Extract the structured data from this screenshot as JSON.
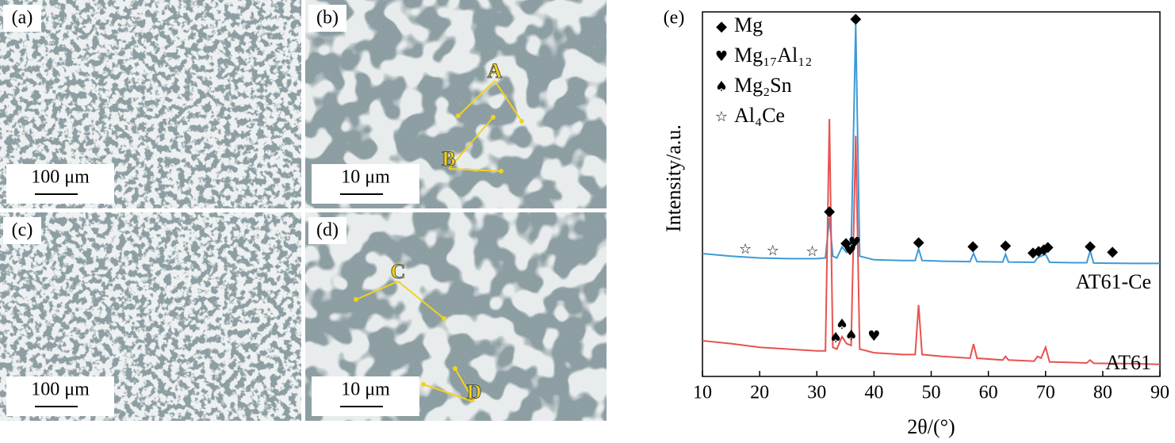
{
  "panels": [
    {
      "label": "(a)",
      "scale_bar": "100 μm",
      "annotations": []
    },
    {
      "label": "(b)",
      "scale_bar": "10 μm",
      "annotations": [
        "A",
        "B"
      ]
    },
    {
      "label": "(c)",
      "scale_bar": "100 μm",
      "annotations": []
    },
    {
      "label": "(d)",
      "scale_bar": "10 μm",
      "annotations": [
        "C",
        "D"
      ]
    }
  ],
  "chart_data": {
    "type": "line",
    "panel_label": "(e)",
    "xlabel": "2θ/(°)",
    "ylabel": "Intensity/a.u.",
    "x": [
      10,
      15,
      20,
      25,
      30,
      31.5,
      32.2,
      32.8,
      33.5,
      34.4,
      35.2,
      36,
      36.8,
      37.5,
      40,
      45,
      47.2,
      47.8,
      48.4,
      52,
      56.8,
      57.4,
      58,
      62.5,
      63,
      63.5,
      68,
      68.6,
      69.2,
      70,
      70.7,
      75,
      77.2,
      77.8,
      78.4,
      85,
      90
    ],
    "series": [
      {
        "name": "AT61-Ce",
        "color": "#3d9ad6",
        "values": [
          33.7,
          33,
          32.5,
          32.3,
          32.3,
          32.5,
          43.5,
          33,
          32.5,
          35.5,
          34,
          34.5,
          96.7,
          33,
          32,
          31.8,
          31.8,
          35,
          31.8,
          31.6,
          31.5,
          33.8,
          31.5,
          31.4,
          33.5,
          31.4,
          31.3,
          32.5,
          33,
          33.5,
          31.3,
          31.2,
          31.2,
          34.5,
          31.1,
          31,
          31
        ]
      },
      {
        "name": "AT61",
        "color": "#e8524f",
        "values": [
          9.8,
          9,
          8,
          7.5,
          7,
          7,
          70.6,
          8,
          7.5,
          10.9,
          9,
          8.5,
          66,
          7.5,
          6.5,
          6,
          6,
          19.6,
          6,
          5.5,
          5,
          8.9,
          5,
          4.5,
          5.5,
          4.5,
          4.2,
          5.5,
          5,
          8,
          4,
          3.8,
          3.7,
          4.5,
          3.6,
          3.5,
          3.3
        ]
      }
    ],
    "legend": [
      {
        "symbol": "◆",
        "label": "Mg"
      },
      {
        "symbol": "♥",
        "label": "Mg₁₇Al₁₂"
      },
      {
        "symbol": "♠",
        "label": "Mg₂Sn"
      },
      {
        "symbol": "☆",
        "label": "Al₄Ce"
      }
    ],
    "markers": [
      {
        "symbol": "◆",
        "x": 36.8,
        "y": 98
      },
      {
        "symbol": "◆",
        "x": 32.2,
        "y": 45.2
      },
      {
        "symbol": "◆",
        "x": 35.1,
        "y": 36.5
      },
      {
        "symbol": "♥",
        "x": 35.8,
        "y": 34.3
      },
      {
        "symbol": "♥",
        "x": 36.6,
        "y": 36.5
      },
      {
        "symbol": "☆",
        "x": 17.5,
        "y": 34.8
      },
      {
        "symbol": "☆",
        "x": 22.3,
        "y": 34.3
      },
      {
        "symbol": "☆",
        "x": 29.2,
        "y": 34.1
      },
      {
        "symbol": "◆",
        "x": 47.8,
        "y": 36.7
      },
      {
        "symbol": "◆",
        "x": 57.3,
        "y": 35.7
      },
      {
        "symbol": "◆",
        "x": 63,
        "y": 35.9
      },
      {
        "symbol": "◆",
        "x": 67.8,
        "y": 33.9
      },
      {
        "symbol": "◆",
        "x": 68.8,
        "y": 34.3
      },
      {
        "symbol": "◆",
        "x": 69.7,
        "y": 34.8
      },
      {
        "symbol": "◆",
        "x": 70.4,
        "y": 35.4
      },
      {
        "symbol": "◆",
        "x": 77.8,
        "y": 35.7
      },
      {
        "symbol": "◆",
        "x": 81.7,
        "y": 34.1
      },
      {
        "symbol": "♠",
        "x": 33.3,
        "y": 10.4
      },
      {
        "symbol": "♠",
        "x": 34.4,
        "y": 14.1
      },
      {
        "symbol": "♠",
        "x": 36,
        "y": 11.1
      },
      {
        "symbol": "♥",
        "x": 40,
        "y": 10.9
      }
    ],
    "xlim": [
      10,
      90
    ],
    "ylim": [
      0,
      100
    ],
    "xticks": [
      10,
      20,
      30,
      40,
      50,
      60,
      70,
      80,
      90
    ]
  }
}
